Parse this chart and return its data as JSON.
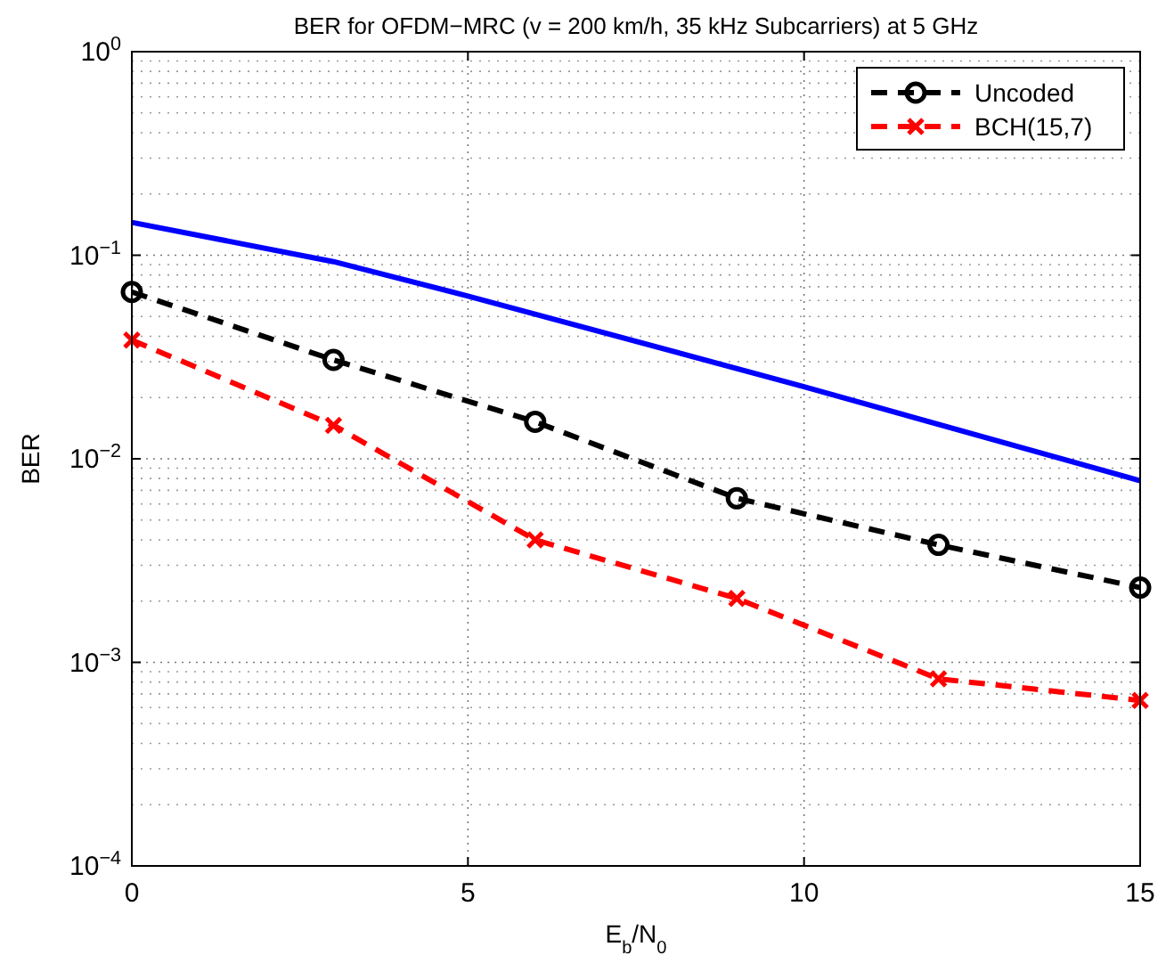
{
  "chart_data": {
    "type": "line",
    "title": "BER for OFDM−MRC (v = 200 km/h, 35 kHz Subcarriers) at 5 GHz",
    "xlabel": "E$_{b}$/N$_{0}$",
    "ylabel": "BER",
    "log": "y",
    "grid": true,
    "legend": "top right",
    "xlim": [
      0,
      15
    ],
    "xticks": [
      0,
      5,
      10,
      15
    ],
    "ylim": [
      0.0001,
      1
    ],
    "yticks": [
      {
        "value": 0.0001,
        "label": "10$^{−4}$"
      },
      {
        "value": 0.001,
        "label": "10$^{−3}$"
      },
      {
        "value": 0.01,
        "label": "10$^{−2}$"
      },
      {
        "value": 0.1,
        "label": "10$^{−1}$"
      },
      {
        "value": 1,
        "label": "10$^{0}$"
      }
    ],
    "series": [
      {
        "color": "#0000ff",
        "line_style": "solid",
        "marker": "none",
        "x": [
          0,
          3,
          5,
          10,
          15
        ],
        "values": [
          0.145,
          0.093,
          0.063,
          0.0226,
          0.0078
        ]
      },
      {
        "name": "Uncoded",
        "color": "#000000",
        "line_style": "dashed",
        "marker": "circle",
        "x": [
          0,
          3,
          6,
          9,
          12,
          15
        ],
        "values": [
          0.066,
          0.0306,
          0.0152,
          0.0064,
          0.00378,
          0.00233
        ]
      },
      {
        "name": "BCH(15,7)",
        "color": "#ff0000",
        "line_style": "dashed",
        "marker": "cross",
        "x": [
          0,
          3,
          6,
          9,
          12,
          15
        ],
        "values": [
          0.0383,
          0.0146,
          0.004,
          0.00206,
          0.00083,
          0.00065
        ]
      }
    ]
  }
}
